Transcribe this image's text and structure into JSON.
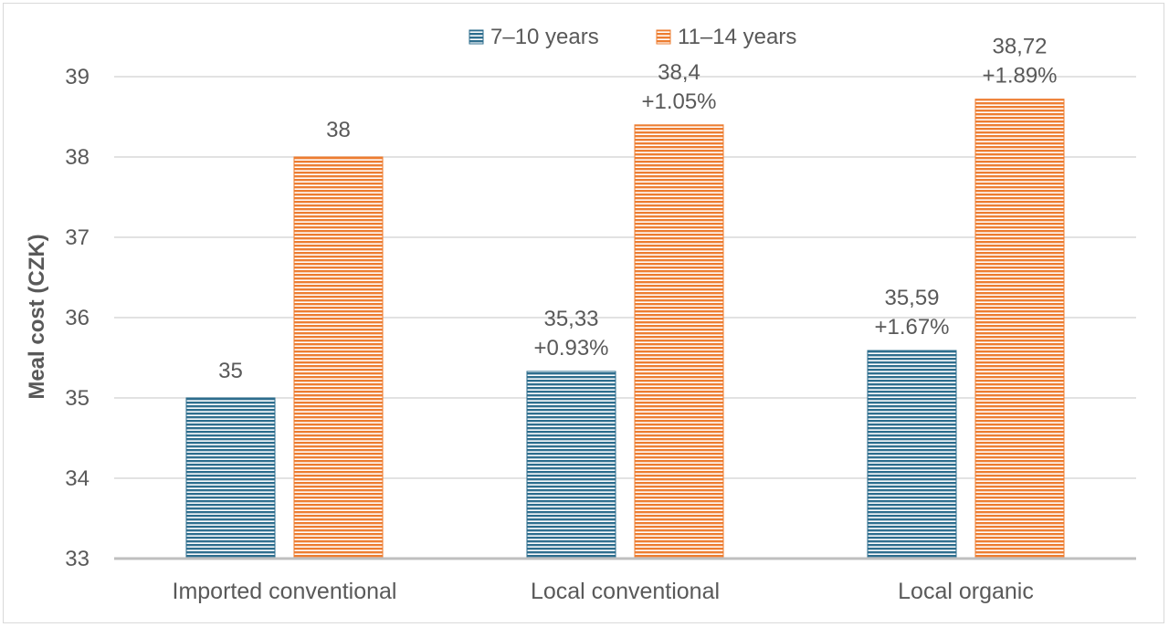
{
  "chart_data": {
    "type": "bar",
    "title": "",
    "xlabel": "",
    "ylabel": "Meal cost (CZK)",
    "ylim": [
      33,
      39
    ],
    "yticks": [
      33,
      34,
      35,
      36,
      37,
      38,
      39
    ],
    "grid": true,
    "legend_position": "top",
    "categories": [
      "Imported conventional",
      "Local conventional",
      "Local organic"
    ],
    "series": [
      {
        "name": "7–10 years",
        "color": "#2e6e8e",
        "values": [
          35,
          35.33,
          35.59
        ],
        "labels": [
          "35",
          "35,33",
          "35,59"
        ],
        "change_labels": [
          "",
          "+0.93%",
          "+1.67%"
        ]
      },
      {
        "name": "11–14 years",
        "color": "#ed7d31",
        "values": [
          38,
          38.4,
          38.72
        ],
        "labels": [
          "38",
          "38,4",
          "38,72"
        ],
        "change_labels": [
          "",
          "+1.05%",
          "+1.89%"
        ]
      }
    ]
  }
}
